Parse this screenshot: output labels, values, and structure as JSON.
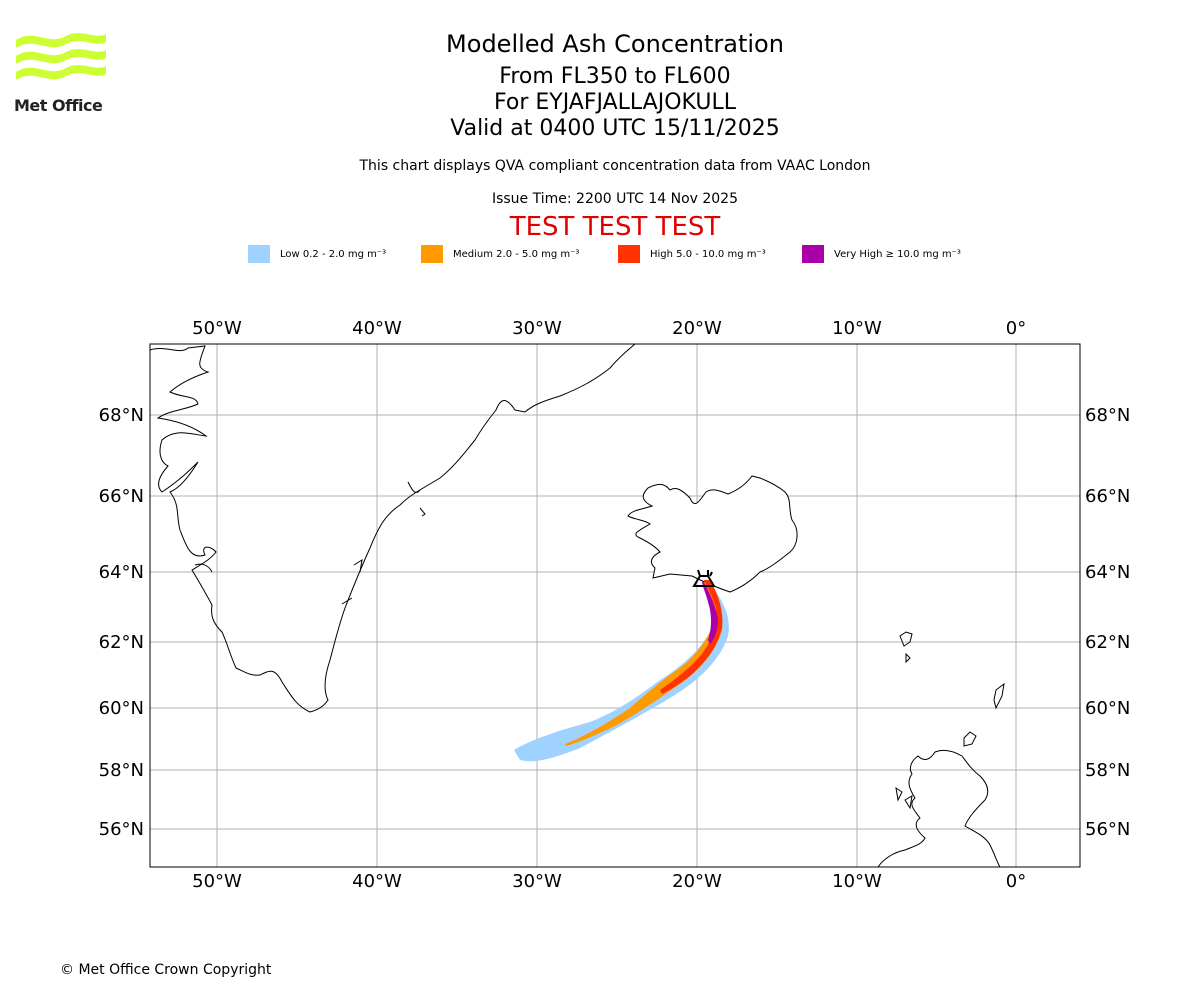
{
  "logo": {
    "text": "Met Office",
    "icon": "met-office-wave-logo",
    "accent": "#ccff33"
  },
  "header": {
    "title": "Modelled Ash Concentration",
    "levels": "From FL350 to FL600",
    "volcano": "For EYJAFJALLAJOKULL",
    "valid": "Valid at 0400 UTC 15/11/2025",
    "description": "This chart displays QVA compliant concentration data from VAAC London",
    "issue_time": "Issue Time: 2200 UTC 14 Nov 2025",
    "test_banner": "TEST TEST TEST",
    "test_color": "#e00000"
  },
  "legend": [
    {
      "label": "Low 0.2 - 2.0 mg m⁻³",
      "color": "#a0d2ff"
    },
    {
      "label": "Medium 2.0 - 5.0 mg m⁻³",
      "color": "#ff9900"
    },
    {
      "label": "High 5.0 - 10.0 mg m⁻³",
      "color": "#ff3300"
    },
    {
      "label": "Very High  ≥  10.0 mg m⁻³",
      "color": "#aa00aa"
    }
  ],
  "map": {
    "longitude_labels": [
      "50°W",
      "40°W",
      "30°W",
      "20°W",
      "10°W",
      "0°"
    ],
    "latitude_labels": [
      "68°N",
      "66°N",
      "64°N",
      "62°N",
      "60°N",
      "58°N",
      "56°N"
    ],
    "volcano_icon": "volcano-icon"
  },
  "footer": {
    "copyright": "© Met Office Crown Copyright"
  }
}
